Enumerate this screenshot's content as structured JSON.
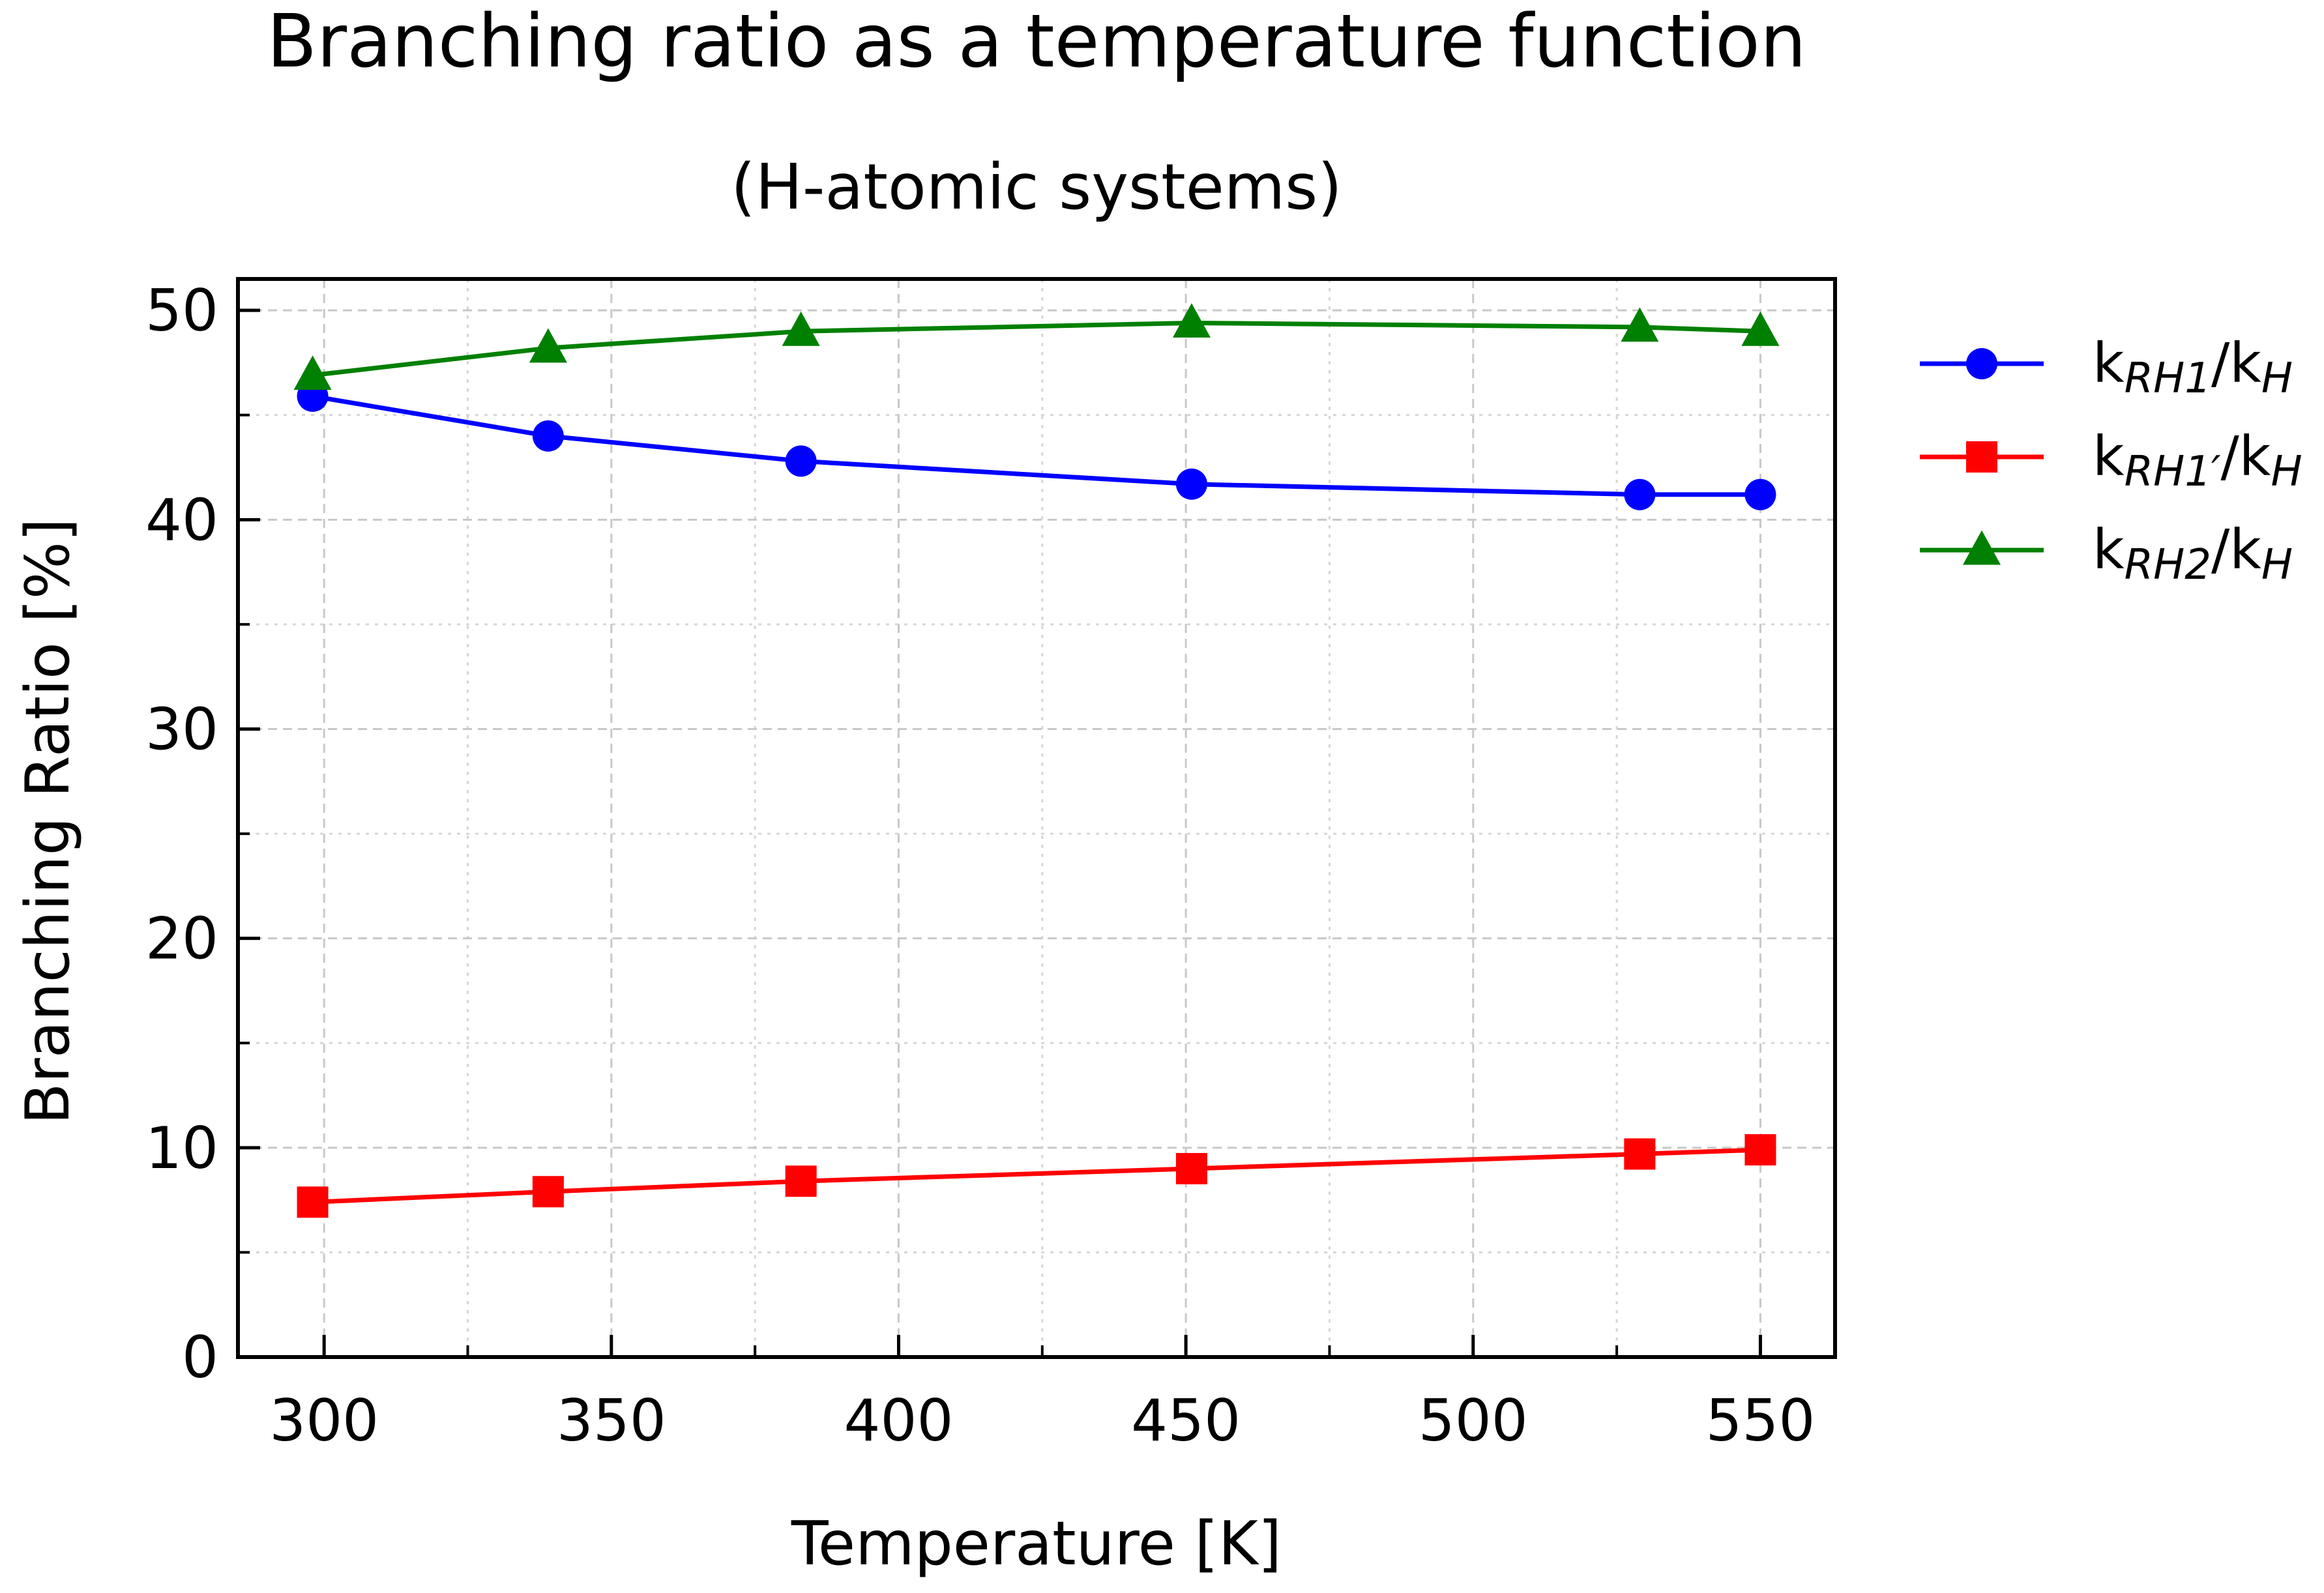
{
  "chart_data": {
    "type": "line",
    "title": "Branching ratio as a temperature function",
    "subtitle": "(H-atomic systems)",
    "xlabel": "Temperature [K]",
    "ylabel": "Branching Ratio [%]",
    "xlim": [
      285,
      563
    ],
    "ylim": [
      0,
      51.5
    ],
    "xticks": [
      300,
      350,
      400,
      450,
      500,
      550
    ],
    "yticks": [
      0,
      10,
      20,
      30,
      40,
      50
    ],
    "grid": true,
    "legend_position": "outside-right-top",
    "x": [
      298,
      339,
      383,
      451,
      529,
      550
    ],
    "series": [
      {
        "name": "kRH1/kH",
        "legend": {
          "main": "k",
          "sub": "RH1",
          "sep": "/k",
          "sub2": "H"
        },
        "color": "#0000ff",
        "marker": "circle",
        "values": [
          45.9,
          44.0,
          42.8,
          41.7,
          41.2,
          41.2
        ]
      },
      {
        "name": "kRH1'/kH",
        "legend": {
          "main": "k",
          "sub": "RH1′",
          "sep": "/k",
          "sub2": "H"
        },
        "color": "#ff0000",
        "marker": "square",
        "values": [
          7.4,
          7.9,
          8.4,
          9.0,
          9.7,
          9.9
        ]
      },
      {
        "name": "kRH2/kH",
        "legend": {
          "main": "k",
          "sub": "RH2",
          "sep": "/k",
          "sub2": "H"
        },
        "color": "#008000",
        "marker": "triangle",
        "values": [
          46.9,
          48.2,
          49.0,
          49.4,
          49.2,
          49.0
        ]
      }
    ]
  }
}
